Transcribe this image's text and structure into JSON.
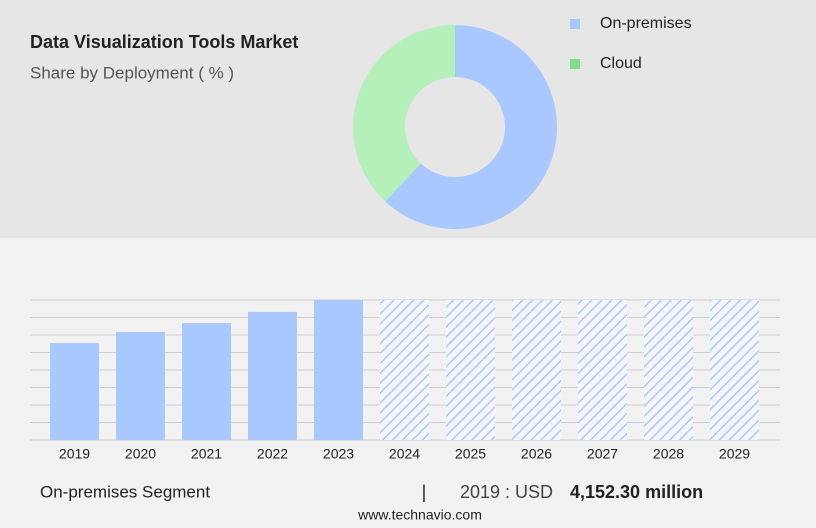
{
  "header": {
    "title": "Data Visualization Tools Market",
    "subtitle": "Share by Deployment ( % )"
  },
  "chart_data": [
    {
      "type": "donut",
      "categories": [
        "On-premises",
        "Cloud"
      ],
      "values": [
        62,
        38
      ],
      "colors": [
        "#a9c8ff",
        "#b5efb9"
      ],
      "legend_colors": [
        "#a9c8ff",
        "#7ee08a"
      ],
      "legend": "top-right"
    },
    {
      "type": "bar",
      "categories": [
        "2019",
        "2020",
        "2021",
        "2022",
        "2023",
        "2024",
        "2025",
        "2026",
        "2027",
        "2028",
        "2029"
      ],
      "values": [
        4152.3,
        4630,
        5010,
        5490,
        6000,
        null,
        null,
        null,
        null,
        null,
        null
      ],
      "color": "#a9c8ff",
      "ylim": [
        0,
        6000
      ],
      "yticks": [
        0,
        750,
        1500,
        2250,
        3000,
        3750,
        4500,
        5250,
        6000
      ],
      "grid": true
    }
  ],
  "footer": {
    "segment": "On-premises Segment",
    "separator": "|",
    "year_label": "2019 : USD",
    "value": "4,152.30 million",
    "source": "www.technavio.com"
  }
}
